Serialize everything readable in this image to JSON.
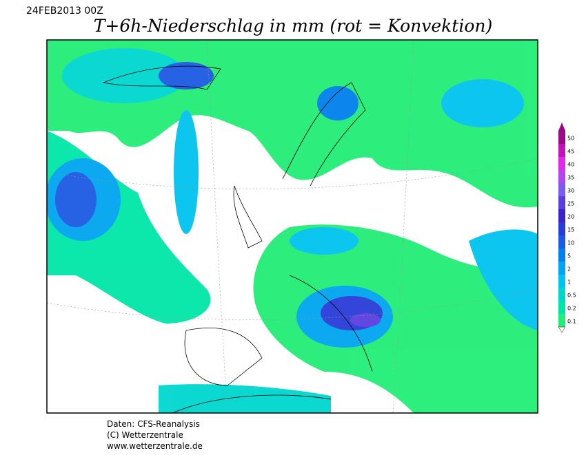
{
  "header": {
    "date": "24FEB2013 00Z",
    "title": "T+6h-Niederschlag in mm (rot = Konvektion)"
  },
  "legend": {
    "levels": [
      {
        "label": "0.1",
        "color": "#22ee77"
      },
      {
        "label": "0.2",
        "color": "#00e6a8"
      },
      {
        "label": "0.5",
        "color": "#00d6d0"
      },
      {
        "label": "1",
        "color": "#00c4f0"
      },
      {
        "label": "2",
        "color": "#00a4f0"
      },
      {
        "label": "5",
        "color": "#0080ec"
      },
      {
        "label": "10",
        "color": "#1c5ae4"
      },
      {
        "label": "15",
        "color": "#2a3cd8"
      },
      {
        "label": "20",
        "color": "#3a22cc"
      },
      {
        "label": "25",
        "color": "#5a3ee0"
      },
      {
        "label": "30",
        "color": "#7e5af0"
      },
      {
        "label": "35",
        "color": "#b444f0"
      },
      {
        "label": "40",
        "color": "#e028e8"
      },
      {
        "label": "45",
        "color": "#c414b8"
      },
      {
        "label": "50",
        "color": "#9a0a86"
      }
    ]
  },
  "footer": {
    "lines": [
      "Daten: CFS-Reanalysis",
      "(C) Wetterzentrale",
      "www.wetterzentrale.de"
    ]
  }
}
